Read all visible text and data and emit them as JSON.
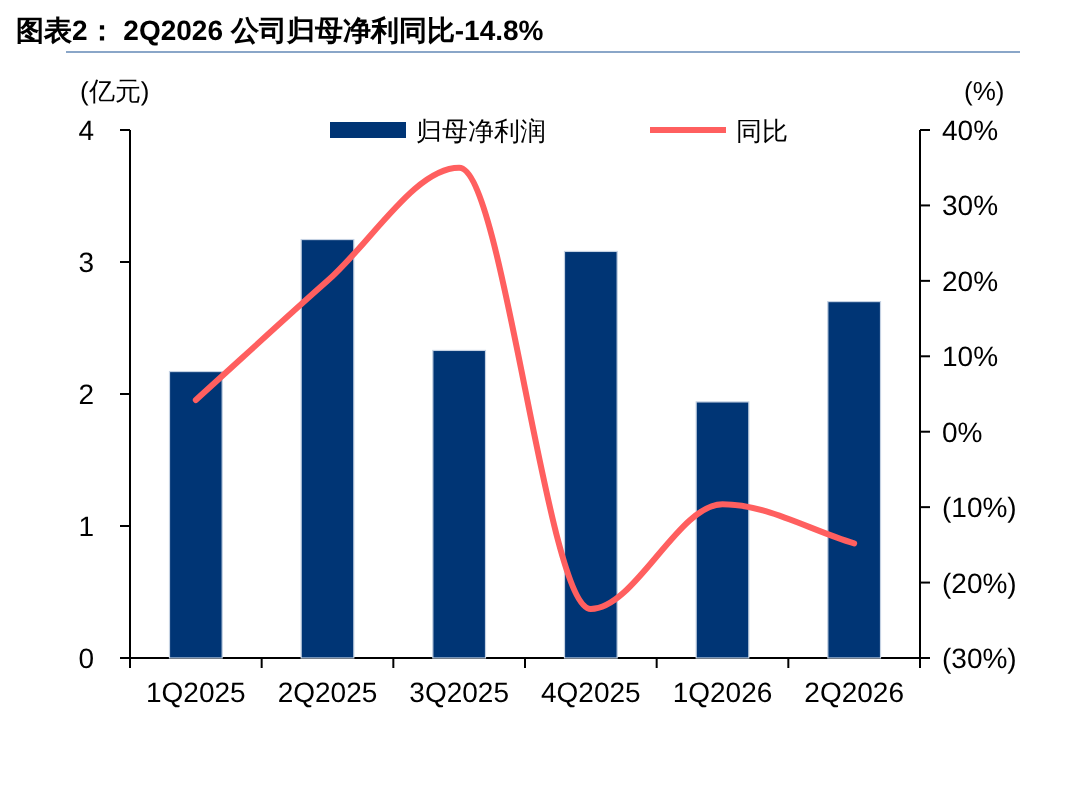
{
  "chart_data": {
    "type": "bar",
    "title": "图表2：  2Q2026 公司归母净利同比-14.8%",
    "ylabel": "(亿元)",
    "y2label": "(%)",
    "categories": [
      "1Q2025",
      "2Q2025",
      "3Q2025",
      "4Q2025",
      "1Q2026",
      "2Q2026"
    ],
    "series": [
      {
        "name": "归母净利润",
        "color": "#003575",
        "values": [
          2.17,
          3.17,
          2.33,
          3.08,
          1.94,
          2.7
        ]
      },
      {
        "name": "同比",
        "type": "line",
        "axis": "y2",
        "color": "#ff5f5f",
        "values": [
          4.2,
          20,
          35,
          -23.5,
          -9.6,
          -14.8
        ]
      }
    ],
    "ylim": [
      0,
      4
    ],
    "yticks": [
      0,
      1,
      2,
      3,
      4
    ],
    "y2lim": [
      -30,
      40
    ],
    "y2ticks": [
      {
        "value": -30,
        "label": "(30%)"
      },
      {
        "value": -20,
        "label": "(20%)"
      },
      {
        "value": -10,
        "label": "(10%)"
      },
      {
        "value": 0,
        "label": "0%"
      },
      {
        "value": 10,
        "label": "10%"
      },
      {
        "value": 20,
        "label": "20%"
      },
      {
        "value": 30,
        "label": "30%"
      },
      {
        "value": 40,
        "label": "40%"
      }
    ],
    "grid": false,
    "legend": "top",
    "marker": "none",
    "line_style": "solid"
  }
}
